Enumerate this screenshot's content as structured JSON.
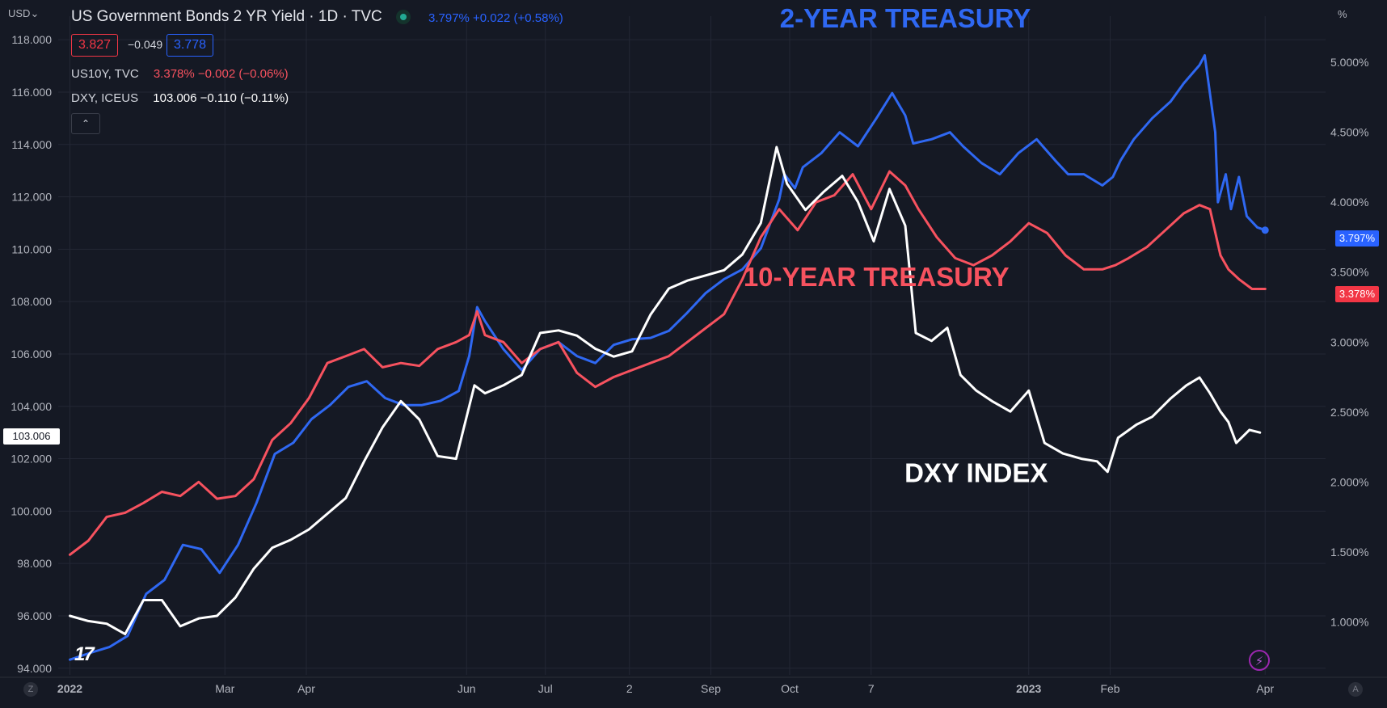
{
  "header": {
    "currency": "USD",
    "currency_arrow": "⌄",
    "title": "US Government Bonds 2 YR Yield · 1D · TVC",
    "quote": "3.797% +0.022 (+0.58%)",
    "bid": "3.827",
    "spread": "−0.049",
    "ask": "3.778",
    "collapse_icon": "⌃",
    "percent_axis_label": "%"
  },
  "legend_rows": [
    {
      "symbol": "US10Y, TVC",
      "value": "3.378% −0.002 (−0.06%)",
      "color": "#f7525f"
    },
    {
      "symbol": "DXY, ICEUS",
      "value": "103.006 −0.110 (−0.11%)",
      "color": "#ffffff"
    }
  ],
  "price_tags": {
    "us02y": "3.797%",
    "us10y": "3.378%",
    "dxy": "103.006"
  },
  "corner_buttons": {
    "left": "Z",
    "right": "A",
    "bolt": "⚡",
    "logo": "17"
  },
  "chart_data": {
    "type": "line",
    "x_labels": [
      "2022",
      "Mar",
      "Apr",
      "Jun",
      "Jul",
      "2",
      "Sep",
      "Oct",
      "7",
      "2023",
      "Feb",
      "Apr"
    ],
    "x_label_days": [
      0,
      59,
      90,
      151,
      181,
      213,
      244,
      274,
      305,
      365,
      396,
      455
    ],
    "left_axis": {
      "ticks": [
        "94.000",
        "96.000",
        "98.000",
        "100.000",
        "102.000",
        "104.000",
        "106.000",
        "108.000",
        "110.000",
        "112.000",
        "114.000",
        "116.000",
        "118.000"
      ],
      "range": [
        93.9,
        118.9
      ]
    },
    "right_axis": {
      "ticks": [
        "1.000%",
        "1.500%",
        "2.000%",
        "2.500%",
        "3.000%",
        "3.500%",
        "4.000%",
        "4.500%",
        "5.000%"
      ],
      "range": [
        0.65,
        5.33
      ]
    },
    "x_range_days": [
      -2,
      478
    ],
    "annotations": [
      {
        "text": "2-YEAR TREASURY",
        "color": "#2f68f2",
        "day": 318,
        "value": 5.25
      },
      {
        "text": "10-YEAR TREASURY",
        "color": "#f7525f",
        "day": 307,
        "value": 3.4
      },
      {
        "text": "DXY INDEX",
        "color": "#ffffff",
        "day": 345,
        "value": 2.0
      }
    ],
    "series": [
      {
        "name": "US02Y",
        "axis": "right",
        "color": "#2f68f2",
        "points": [
          [
            0,
            0.73
          ],
          [
            8,
            0.78
          ],
          [
            15,
            0.82
          ],
          [
            22,
            0.9
          ],
          [
            29,
            1.2
          ],
          [
            36,
            1.3
          ],
          [
            43,
            1.55
          ],
          [
            50,
            1.52
          ],
          [
            57,
            1.35
          ],
          [
            64,
            1.55
          ],
          [
            71,
            1.85
          ],
          [
            78,
            2.2
          ],
          [
            85,
            2.28
          ],
          [
            92,
            2.45
          ],
          [
            99,
            2.55
          ],
          [
            106,
            2.68
          ],
          [
            113,
            2.72
          ],
          [
            120,
            2.6
          ],
          [
            127,
            2.55
          ],
          [
            134,
            2.55
          ],
          [
            141,
            2.58
          ],
          [
            148,
            2.65
          ],
          [
            152,
            2.9
          ],
          [
            155,
            3.25
          ],
          [
            158,
            3.15
          ],
          [
            165,
            2.95
          ],
          [
            172,
            2.8
          ],
          [
            179,
            2.95
          ],
          [
            186,
            3.0
          ],
          [
            193,
            2.9
          ],
          [
            200,
            2.85
          ],
          [
            207,
            2.98
          ],
          [
            214,
            3.02
          ],
          [
            221,
            3.03
          ],
          [
            228,
            3.08
          ],
          [
            235,
            3.21
          ],
          [
            242,
            3.35
          ],
          [
            249,
            3.45
          ],
          [
            256,
            3.52
          ],
          [
            263,
            3.67
          ],
          [
            270,
            4.02
          ],
          [
            272,
            4.2
          ],
          [
            276,
            4.1
          ],
          [
            279,
            4.25
          ],
          [
            286,
            4.35
          ],
          [
            293,
            4.5
          ],
          [
            300,
            4.4
          ],
          [
            307,
            4.6
          ],
          [
            313,
            4.78
          ],
          [
            318,
            4.62
          ],
          [
            321,
            4.42
          ],
          [
            328,
            4.45
          ],
          [
            335,
            4.5
          ],
          [
            340,
            4.4
          ],
          [
            347,
            4.28
          ],
          [
            354,
            4.2
          ],
          [
            361,
            4.35
          ],
          [
            368,
            4.45
          ],
          [
            375,
            4.3
          ],
          [
            380,
            4.2
          ],
          [
            386,
            4.2
          ],
          [
            393,
            4.12
          ],
          [
            397,
            4.18
          ],
          [
            400,
            4.3
          ],
          [
            405,
            4.45
          ],
          [
            412,
            4.6
          ],
          [
            419,
            4.72
          ],
          [
            424,
            4.85
          ],
          [
            430,
            4.98
          ],
          [
            432,
            5.05
          ],
          [
            436,
            4.5
          ],
          [
            437,
            4.0
          ],
          [
            440,
            4.2
          ],
          [
            442,
            3.95
          ],
          [
            445,
            4.18
          ],
          [
            448,
            3.9
          ],
          [
            452,
            3.82
          ],
          [
            455,
            3.8
          ]
        ]
      },
      {
        "name": "US10Y",
        "axis": "right",
        "color": "#f7525f",
        "points": [
          [
            0,
            1.48
          ],
          [
            7,
            1.58
          ],
          [
            14,
            1.75
          ],
          [
            21,
            1.78
          ],
          [
            28,
            1.85
          ],
          [
            35,
            1.93
          ],
          [
            42,
            1.9
          ],
          [
            49,
            2.0
          ],
          [
            56,
            1.88
          ],
          [
            63,
            1.9
          ],
          [
            70,
            2.02
          ],
          [
            77,
            2.3
          ],
          [
            84,
            2.42
          ],
          [
            91,
            2.6
          ],
          [
            98,
            2.85
          ],
          [
            105,
            2.9
          ],
          [
            112,
            2.95
          ],
          [
            119,
            2.82
          ],
          [
            126,
            2.85
          ],
          [
            133,
            2.83
          ],
          [
            140,
            2.95
          ],
          [
            147,
            3.0
          ],
          [
            152,
            3.05
          ],
          [
            155,
            3.22
          ],
          [
            158,
            3.05
          ],
          [
            165,
            3.0
          ],
          [
            172,
            2.85
          ],
          [
            179,
            2.95
          ],
          [
            186,
            3.0
          ],
          [
            193,
            2.78
          ],
          [
            200,
            2.68
          ],
          [
            207,
            2.75
          ],
          [
            214,
            2.8
          ],
          [
            221,
            2.85
          ],
          [
            228,
            2.9
          ],
          [
            235,
            3.0
          ],
          [
            242,
            3.1
          ],
          [
            249,
            3.2
          ],
          [
            256,
            3.45
          ],
          [
            263,
            3.75
          ],
          [
            270,
            3.95
          ],
          [
            277,
            3.8
          ],
          [
            284,
            4.0
          ],
          [
            291,
            4.05
          ],
          [
            298,
            4.2
          ],
          [
            305,
            3.95
          ],
          [
            312,
            4.22
          ],
          [
            318,
            4.12
          ],
          [
            323,
            3.95
          ],
          [
            330,
            3.75
          ],
          [
            337,
            3.6
          ],
          [
            344,
            3.55
          ],
          [
            351,
            3.62
          ],
          [
            358,
            3.72
          ],
          [
            365,
            3.85
          ],
          [
            372,
            3.78
          ],
          [
            379,
            3.62
          ],
          [
            386,
            3.52
          ],
          [
            393,
            3.52
          ],
          [
            398,
            3.55
          ],
          [
            403,
            3.6
          ],
          [
            410,
            3.68
          ],
          [
            417,
            3.8
          ],
          [
            424,
            3.92
          ],
          [
            430,
            3.98
          ],
          [
            434,
            3.95
          ],
          [
            438,
            3.62
          ],
          [
            441,
            3.52
          ],
          [
            445,
            3.45
          ],
          [
            450,
            3.38
          ],
          [
            455,
            3.38
          ]
        ]
      },
      {
        "name": "DXY",
        "axis": "left",
        "color": "#ffffff",
        "points": [
          [
            0,
            96.0
          ],
          [
            7,
            95.8
          ],
          [
            14,
            95.7
          ],
          [
            21,
            95.3
          ],
          [
            28,
            96.6
          ],
          [
            35,
            96.6
          ],
          [
            42,
            95.6
          ],
          [
            49,
            95.9
          ],
          [
            56,
            96.0
          ],
          [
            63,
            96.7
          ],
          [
            70,
            97.8
          ],
          [
            77,
            98.6
          ],
          [
            84,
            98.9
          ],
          [
            91,
            99.3
          ],
          [
            98,
            99.9
          ],
          [
            105,
            100.5
          ],
          [
            112,
            101.9
          ],
          [
            119,
            103.2
          ],
          [
            126,
            104.2
          ],
          [
            133,
            103.5
          ],
          [
            140,
            102.1
          ],
          [
            147,
            102.0
          ],
          [
            154,
            104.8
          ],
          [
            158,
            104.5
          ],
          [
            165,
            104.8
          ],
          [
            172,
            105.2
          ],
          [
            179,
            106.8
          ],
          [
            186,
            106.9
          ],
          [
            193,
            106.7
          ],
          [
            200,
            106.2
          ],
          [
            207,
            105.9
          ],
          [
            214,
            106.1
          ],
          [
            221,
            107.5
          ],
          [
            228,
            108.5
          ],
          [
            235,
            108.8
          ],
          [
            242,
            109.0
          ],
          [
            249,
            109.2
          ],
          [
            256,
            109.8
          ],
          [
            263,
            111.0
          ],
          [
            269,
            113.9
          ],
          [
            273,
            112.5
          ],
          [
            280,
            111.5
          ],
          [
            287,
            112.2
          ],
          [
            294,
            112.8
          ],
          [
            300,
            111.8
          ],
          [
            306,
            110.3
          ],
          [
            312,
            112.3
          ],
          [
            318,
            110.9
          ],
          [
            322,
            106.8
          ],
          [
            328,
            106.5
          ],
          [
            334,
            107.0
          ],
          [
            339,
            105.2
          ],
          [
            345,
            104.6
          ],
          [
            351,
            104.2
          ],
          [
            358,
            103.8
          ],
          [
            365,
            104.6
          ],
          [
            371,
            102.6
          ],
          [
            378,
            102.2
          ],
          [
            385,
            102.0
          ],
          [
            391,
            101.9
          ],
          [
            395,
            101.5
          ],
          [
            399,
            102.8
          ],
          [
            406,
            103.3
          ],
          [
            412,
            103.6
          ],
          [
            419,
            104.3
          ],
          [
            425,
            104.8
          ],
          [
            430,
            105.1
          ],
          [
            434,
            104.5
          ],
          [
            438,
            103.8
          ],
          [
            441,
            103.4
          ],
          [
            444,
            102.6
          ],
          [
            449,
            103.1
          ],
          [
            453,
            103.0
          ]
        ]
      }
    ]
  }
}
